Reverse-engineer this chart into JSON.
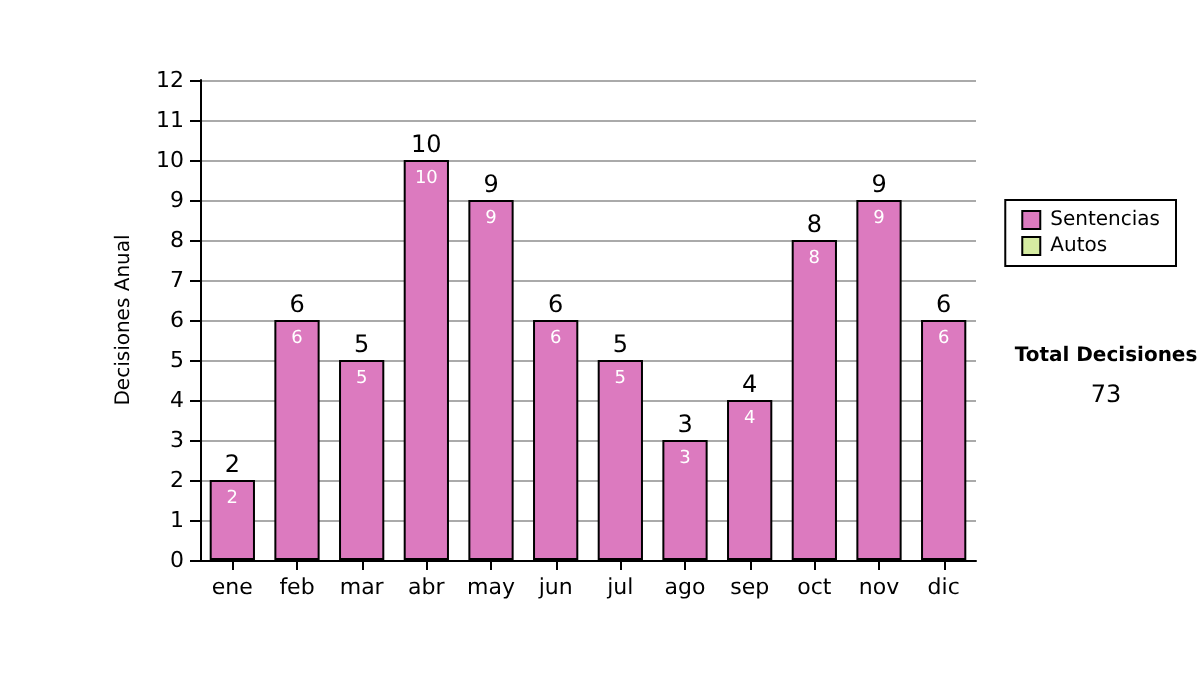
{
  "chart_data": {
    "type": "bar",
    "ylabel": "Decisiones Anual",
    "categories": [
      "ene",
      "feb",
      "mar",
      "abr",
      "may",
      "jun",
      "jul",
      "ago",
      "sep",
      "oct",
      "nov",
      "dic"
    ],
    "series": [
      {
        "name": "Sentencias",
        "color": "#dc7abf",
        "values": [
          2,
          6,
          5,
          10,
          9,
          6,
          5,
          3,
          4,
          8,
          9,
          6
        ],
        "value_labels": [
          "2",
          "6",
          "5",
          "10",
          "9",
          "6",
          "5",
          "3",
          "4",
          "8",
          "9",
          "6"
        ]
      },
      {
        "name": "Autos",
        "color": "#d6eca2",
        "values": [
          0,
          0,
          0,
          0,
          0,
          0,
          0,
          0,
          0,
          0,
          0,
          0
        ]
      }
    ],
    "stacked": true,
    "totals": [
      "2",
      "6",
      "5",
      "10",
      "9",
      "6",
      "5",
      "3",
      "4",
      "8",
      "9",
      "6"
    ],
    "ylim": [
      0,
      12
    ],
    "yticks": [
      0,
      1,
      2,
      3,
      4,
      5,
      6,
      7,
      8,
      9,
      10,
      11,
      12
    ],
    "grid": "y",
    "legend": "right",
    "annotations": [
      "Total Decisiones",
      "73"
    ]
  }
}
